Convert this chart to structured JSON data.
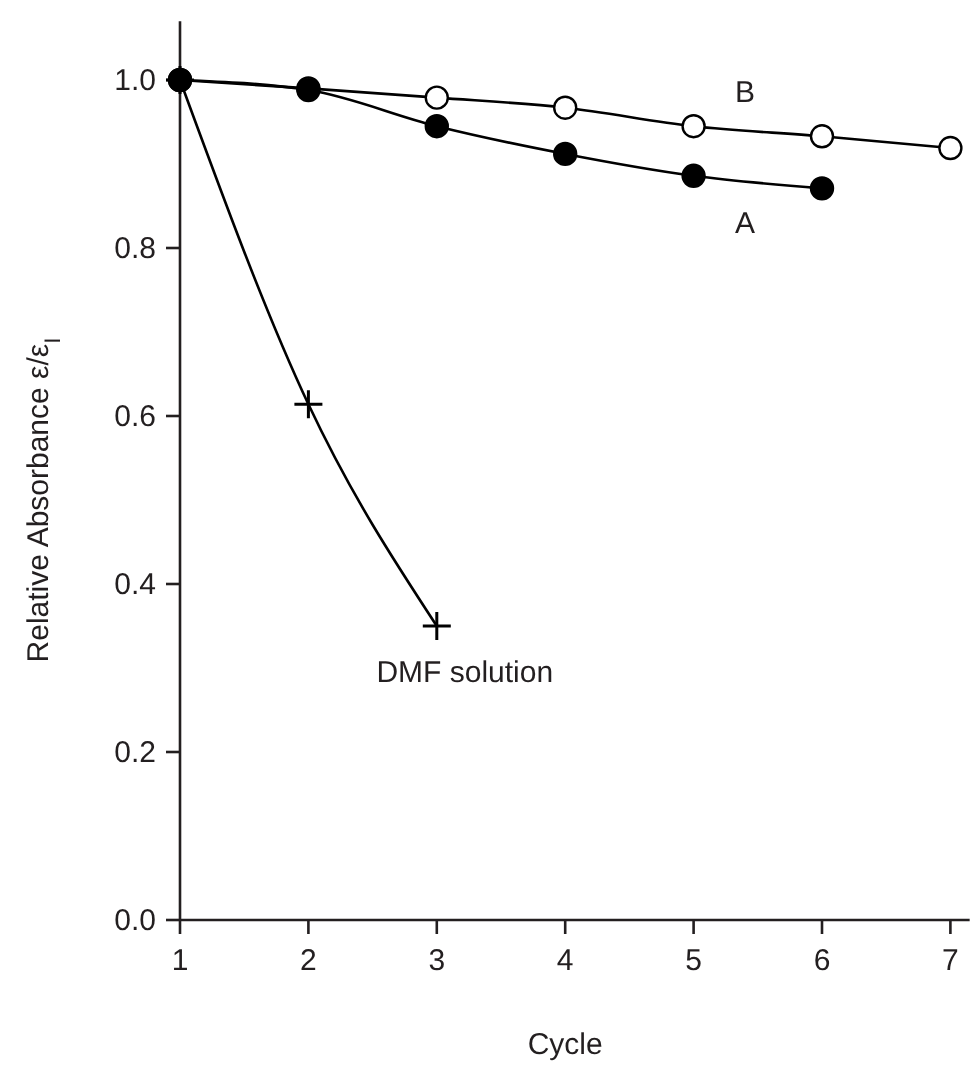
{
  "chart_data": {
    "type": "line",
    "xlabel": "Cycle",
    "ylabel": "Relative Absorbance ε/ε$_{I}$",
    "x": [
      1,
      2,
      3,
      4,
      5,
      6,
      7
    ],
    "xlim": [
      1,
      7.15
    ],
    "ylim": [
      0,
      1.07
    ],
    "xticks": [
      1,
      2,
      3,
      4,
      5,
      6,
      7
    ],
    "yticks": [
      {
        "value": 0,
        "label": "0.0"
      },
      0.2,
      0.4,
      0.6,
      0.8,
      {
        "value": 1,
        "label": "1.0"
      }
    ],
    "grid": false,
    "series": [
      {
        "name": "B",
        "color": "#000000",
        "marker": "circle",
        "values": [
          1.0,
          0.99,
          0.979,
          0.967,
          0.945,
          0.933,
          0.919
        ]
      },
      {
        "name": "A",
        "color": "#000000",
        "marker": "circle",
        "values": [
          1.0,
          0.988,
          0.945,
          0.912,
          0.886,
          0.871,
          null
        ]
      },
      {
        "name": "DMF solution",
        "color": "#000000",
        "marker": "cross",
        "values": [
          1.0,
          0.614,
          0.35,
          null,
          null,
          null,
          null
        ]
      }
    ]
  }
}
